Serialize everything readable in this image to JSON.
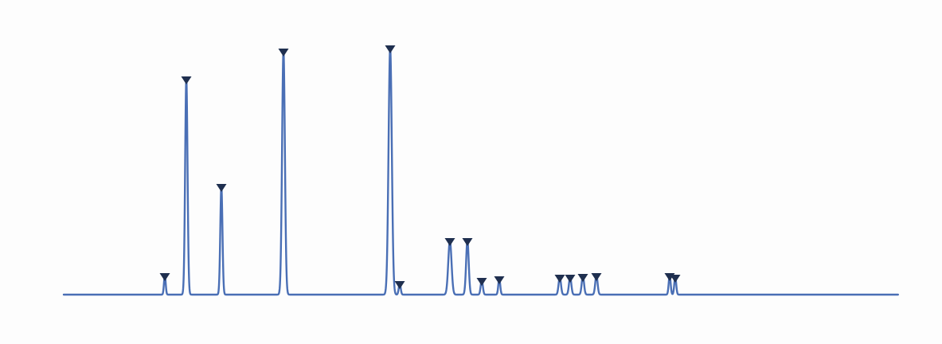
{
  "chart_data": {
    "type": "line",
    "title": "",
    "xlabel": "",
    "ylabel": "",
    "grid": false,
    "xlim": [
      0,
      1048
    ],
    "ylim": [
      0,
      316
    ],
    "baseline": 0,
    "peaks": [
      {
        "x": 127,
        "height": 24,
        "width": 1.6,
        "marked": true
      },
      {
        "x": 154,
        "height": 271,
        "width": 2.2,
        "marked": true
      },
      {
        "x": 198,
        "height": 136,
        "width": 2.0,
        "marked": true
      },
      {
        "x": 276,
        "height": 306,
        "width": 2.6,
        "marked": true
      },
      {
        "x": 410,
        "height": 310,
        "width": 3.0,
        "marked": true
      },
      {
        "x": 422,
        "height": 14,
        "width": 1.8,
        "marked": true
      },
      {
        "x": 485,
        "height": 68,
        "width": 3.0,
        "marked": true
      },
      {
        "x": 507,
        "height": 68,
        "width": 2.4,
        "marked": true
      },
      {
        "x": 525,
        "height": 18,
        "width": 2.0,
        "marked": true
      },
      {
        "x": 547,
        "height": 20,
        "width": 1.8,
        "marked": true
      },
      {
        "x": 623,
        "height": 22,
        "width": 2.2,
        "marked": true
      },
      {
        "x": 636,
        "height": 22,
        "width": 2.2,
        "marked": true
      },
      {
        "x": 652,
        "height": 23,
        "width": 2.2,
        "marked": true
      },
      {
        "x": 669,
        "height": 24,
        "width": 2.2,
        "marked": true
      },
      {
        "x": 761,
        "height": 24,
        "width": 1.8,
        "marked": true
      },
      {
        "x": 768,
        "height": 22,
        "width": 1.8,
        "marked": true
      }
    ],
    "colors": {
      "trace": "#4a6fb5",
      "marker": "#1f2f4f"
    }
  }
}
